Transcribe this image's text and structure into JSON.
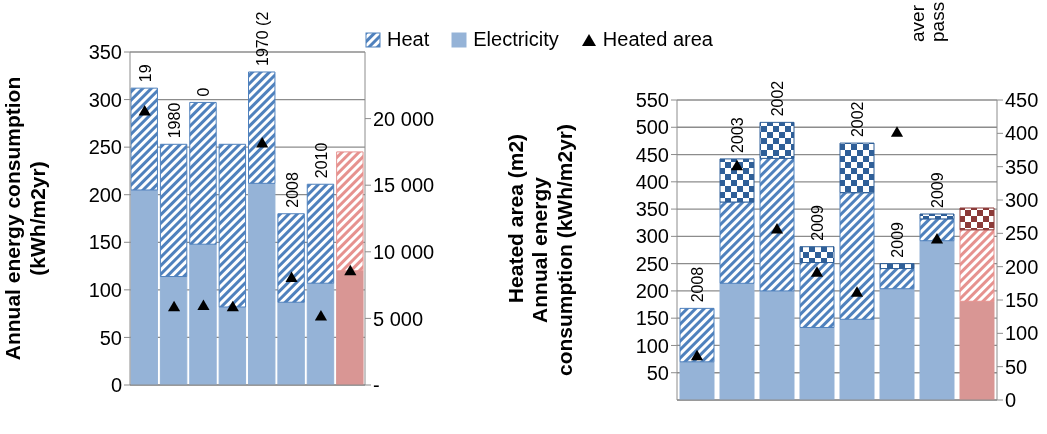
{
  "chart_data": [
    {
      "type": "bar",
      "stacked": true,
      "categories": [
        "19",
        "1980",
        "0",
        null,
        "1970 (2",
        "2008",
        "2010",
        null
      ],
      "ylabel": "Annual energy consumption\n(kWh/m2yr)",
      "y2label": "Heated area (m2)",
      "ylim": [
        0,
        350
      ],
      "yticks": [
        0,
        50,
        100,
        150,
        200,
        250,
        300,
        350
      ],
      "y2lim": [
        0,
        25000
      ],
      "y2ticks": [
        {
          "value": 0,
          "label": "-"
        },
        {
          "value": 5000,
          "label": "5 000"
        },
        {
          "value": 10000,
          "label": "10 000"
        },
        {
          "value": 15000,
          "label": "15 000"
        },
        {
          "value": 20000,
          "label": "20 000"
        }
      ],
      "grid": "y",
      "legend": "top",
      "marker": "triangle",
      "series": [
        {
          "name": "Electricity",
          "color": "#95b3d7",
          "colors": [
            "#95b3d7",
            "#95b3d7",
            "#95b3d7",
            "#95b3d7",
            "#95b3d7",
            "#95b3d7",
            "#95b3d7",
            "#d99694"
          ],
          "values": [
            205,
            114,
            148,
            82,
            212,
            87,
            107,
            120
          ]
        },
        {
          "name": "Heat",
          "color": "#4f81bd",
          "colors": [
            "#4f81bd",
            "#4f81bd",
            "#4f81bd",
            "#4f81bd",
            "#4f81bd",
            "#4f81bd",
            "#4f81bd",
            "#e6928f"
          ],
          "values": [
            107,
            139,
            149,
            171,
            117,
            93,
            104,
            125
          ]
        },
        {
          "name": "Heated area",
          "type": "scatter",
          "axis": "y2",
          "color": "#000000",
          "values": [
            20500,
            5800,
            5900,
            5800,
            18100,
            8000,
            5100,
            8500
          ]
        }
      ]
    },
    {
      "type": "bar",
      "stacked": true,
      "categories": [
        "2008",
        "2003",
        "2002",
        "2009",
        "2002",
        "2009",
        "2009",
        null
      ],
      "ylabel": "Annual  energy\nconsumption (kWh/m2yr)",
      "ylim": [
        0,
        550
      ],
      "yticks": [
        50,
        100,
        150,
        200,
        250,
        300,
        350,
        400,
        450,
        500,
        550
      ],
      "y2lim": [
        0,
        450
      ],
      "y2ticks": [
        0,
        50,
        100,
        150,
        200,
        250,
        300,
        350,
        400,
        450
      ],
      "grid": "y",
      "marker": "triangle",
      "annotations": [
        "aver",
        "pass"
      ],
      "series": [
        {
          "colors": [
            "#95b3d7",
            "#95b3d7",
            "#95b3d7",
            "#95b3d7",
            "#95b3d7",
            "#95b3d7",
            "#95b3d7",
            "#d99694"
          ],
          "values": [
            70,
            214,
            200,
            133,
            148,
            204,
            292,
            181
          ]
        },
        {
          "colors": [
            "#4f81bd",
            "#4f81bd",
            "#4f81bd",
            "#4f81bd",
            "#4f81bd",
            "#4f81bd",
            "#4f81bd",
            "#e6928f"
          ],
          "values": [
            98,
            149,
            243,
            119,
            232,
            37,
            40,
            131
          ]
        },
        {
          "colors": [
            "#2f5f98",
            "#2f5f98",
            "#2f5f98",
            "#2f5f98",
            "#2f5f98",
            "#2f5f98",
            "#2f5f98",
            "#8b3a38"
          ],
          "values": [
            null,
            79,
            66,
            29,
            91,
            9,
            9,
            40
          ]
        },
        {
          "type": "scatter",
          "axis": "y2",
          "color": "#000000",
          "values": [
            65,
            350,
            255,
            190,
            160,
            400,
            240,
            null
          ]
        }
      ]
    }
  ]
}
